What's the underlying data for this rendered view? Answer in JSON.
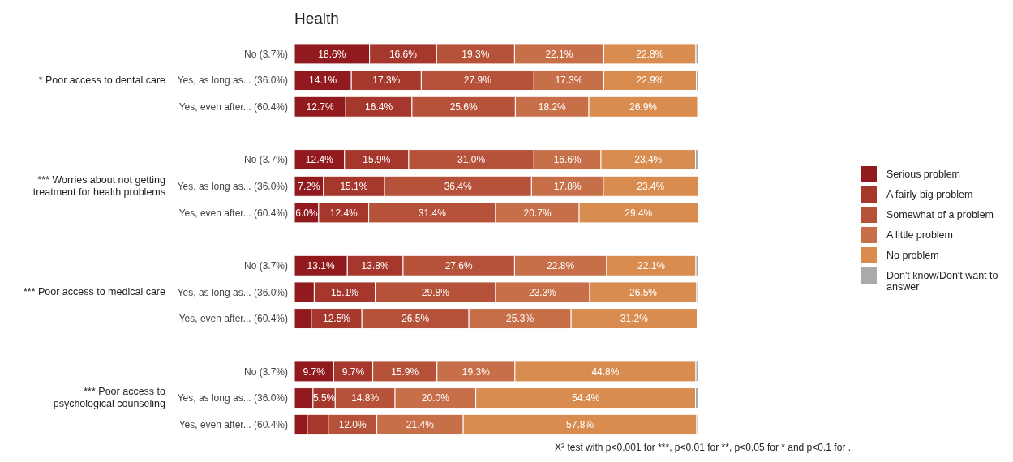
{
  "chart_data": {
    "type": "bar",
    "orientation": "horizontal",
    "stacked": true,
    "title": "Health",
    "legend": "right",
    "categories": [
      "No (3.7%)",
      "Yes, as long as... (36.0%)",
      "Yes, even after... (60.4%)",
      "No (3.7%)",
      "Yes, as long as... (36.0%)",
      "Yes, even after... (60.4%)",
      "No (3.7%)",
      "Yes, as long as... (36.0%)",
      "Yes, even after... (60.4%)",
      "No (3.7%)",
      "Yes, as long as... (36.0%)",
      "Yes, even after... (60.4%)"
    ],
    "annotations": [
      "* Poor access to dental care",
      "*** Worries about not getting\ntreatment for health problems",
      "*** Poor access to medical care",
      "*** Poor access to\npsychological counseling",
      "X² test with p<0.001 for ***, p<0.01 for **, p<0.05 for * and p<0.1 for ."
    ],
    "series": [
      {
        "name": "Serious problem",
        "color": "#911a1e",
        "values": [
          18.6,
          14.1,
          12.7,
          12.4,
          7.2,
          6.0,
          13.1,
          4.9,
          4.2,
          9.7,
          4.6,
          3.2
        ],
        "value_labels": [
          "18.6%",
          "14.1%",
          "12.7%",
          "12.4%",
          "7.2%",
          "6.0%",
          "13.1%",
          null,
          null,
          "9.7%",
          null,
          null
        ]
      },
      {
        "name": "A fairly big problem",
        "color": "#a6372c",
        "values": [
          16.6,
          17.3,
          16.4,
          15.9,
          15.1,
          12.4,
          13.8,
          15.1,
          12.5,
          9.7,
          5.5,
          5.2
        ],
        "value_labels": [
          "16.6%",
          "17.3%",
          "16.4%",
          "15.9%",
          "15.1%",
          "12.4%",
          "13.8%",
          "15.1%",
          "12.5%",
          "9.7%",
          "5.5%",
          null
        ]
      },
      {
        "name": "Somewhat of a problem",
        "color": "#b6523a",
        "values": [
          19.3,
          27.9,
          25.6,
          31.0,
          36.4,
          31.4,
          27.6,
          29.8,
          26.5,
          15.9,
          14.8,
          12.0
        ],
        "value_labels": [
          "19.3%",
          "27.9%",
          "25.6%",
          "31.0%",
          "36.4%",
          "31.4%",
          "27.6%",
          "29.8%",
          "26.5%",
          "15.9%",
          "14.8%",
          "12.0%"
        ]
      },
      {
        "name": "A little problem",
        "color": "#c76f49",
        "values": [
          22.1,
          17.3,
          18.2,
          16.6,
          17.8,
          20.7,
          22.8,
          23.3,
          25.3,
          19.3,
          20.0,
          21.4
        ],
        "value_labels": [
          "22.1%",
          "17.3%",
          "18.2%",
          "16.6%",
          "17.8%",
          "20.7%",
          "22.8%",
          "23.3%",
          "25.3%",
          "19.3%",
          "20.0%",
          "21.4%"
        ]
      },
      {
        "name": "No problem",
        "color": "#d98c4f",
        "values": [
          22.8,
          22.9,
          26.9,
          23.4,
          23.4,
          29.4,
          22.1,
          26.5,
          31.2,
          44.8,
          54.4,
          57.8
        ],
        "value_labels": [
          "22.8%",
          "22.9%",
          "26.9%",
          "23.4%",
          "23.4%",
          "29.4%",
          "22.1%",
          "26.5%",
          "31.2%",
          "44.8%",
          "54.4%",
          "57.8%"
        ]
      },
      {
        "name": "Don't know/Don't want to answer",
        "color": "#aaaaaa",
        "values": [
          0.6,
          0.5,
          null,
          0.7,
          null,
          null,
          0.6,
          0.4,
          0.3,
          0.6,
          0.7,
          0.4
        ]
      }
    ]
  }
}
